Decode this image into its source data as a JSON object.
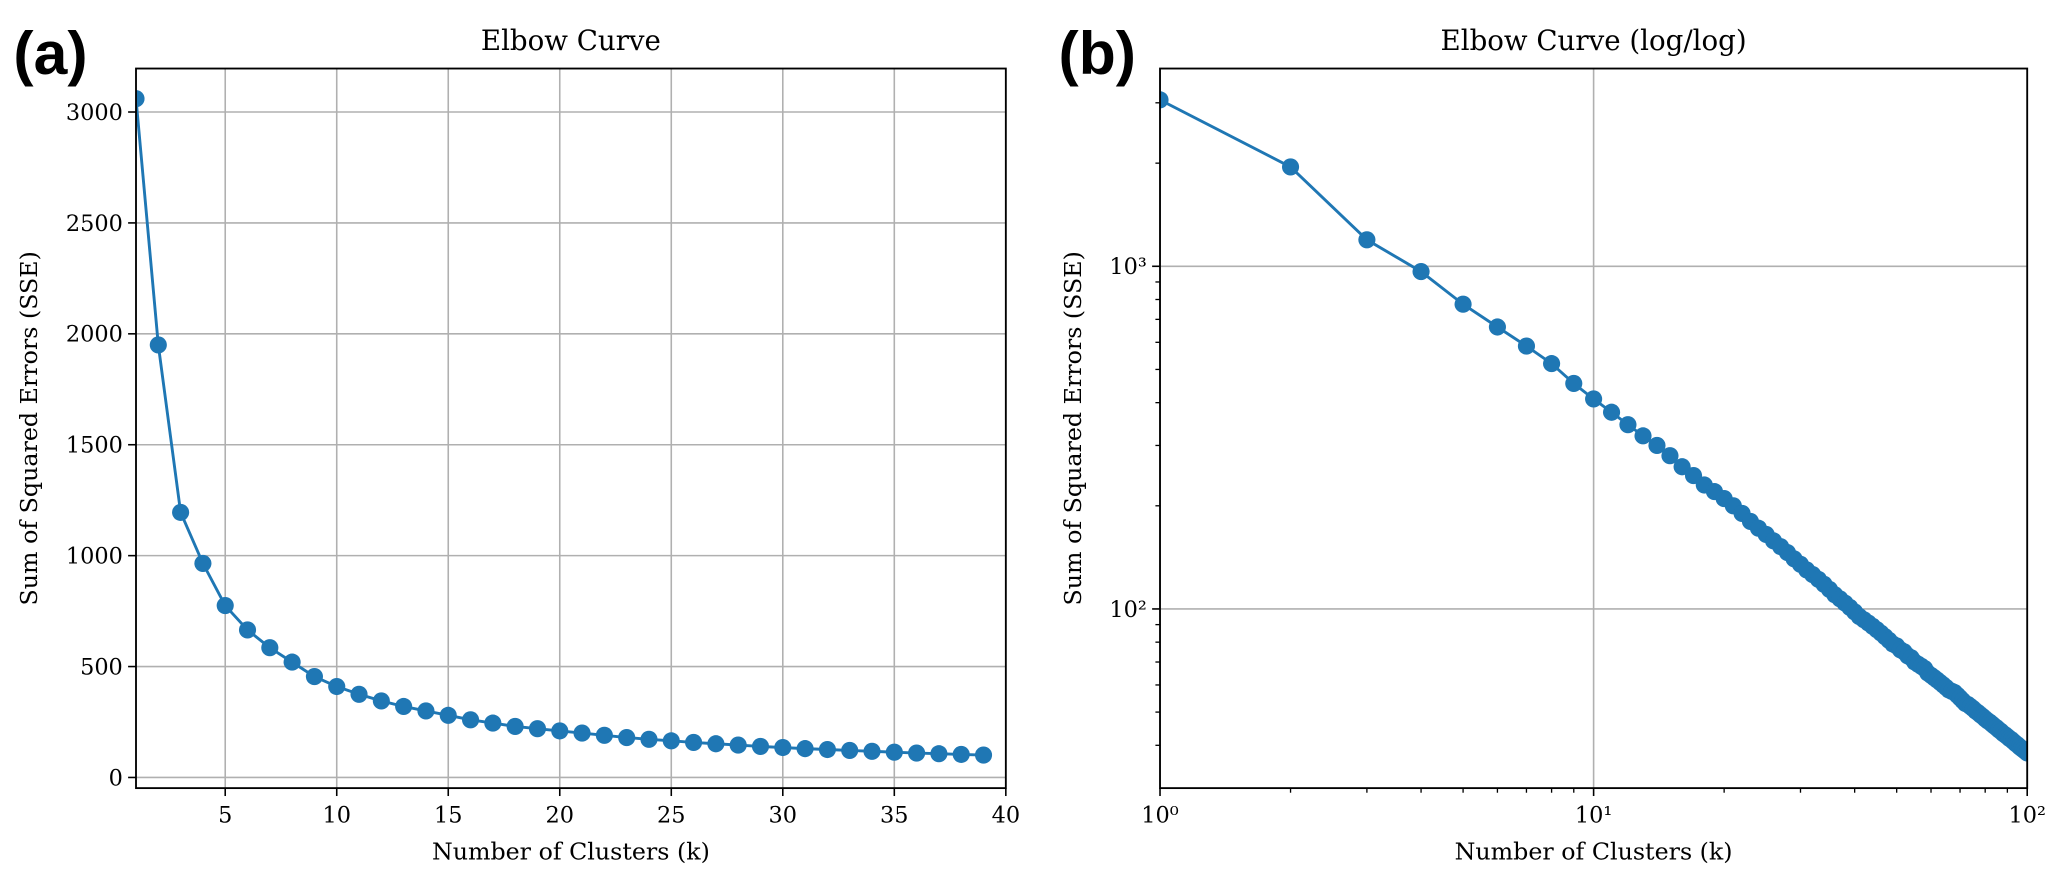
{
  "chart_data": [
    {
      "type": "line",
      "panel_label": "(a)",
      "title": "Elbow Curve",
      "xlabel": "Number of Clusters (k)",
      "ylabel": "Sum of Squared Errors (SSE)",
      "color": "#1f77b4",
      "grid": true,
      "log": false,
      "x": [
        1,
        2,
        3,
        4,
        5,
        6,
        7,
        8,
        9,
        10,
        11,
        12,
        13,
        14,
        15,
        16,
        17,
        18,
        19,
        20,
        21,
        22,
        23,
        24,
        25,
        26,
        27,
        28,
        29,
        30,
        31,
        32,
        33,
        34,
        35,
        36,
        37,
        38,
        39
      ],
      "values": [
        3060,
        1950,
        1195,
        965,
        775,
        665,
        585,
        520,
        455,
        410,
        375,
        345,
        320,
        300,
        280,
        260,
        245,
        230,
        220,
        210,
        200,
        190,
        180,
        172,
        165,
        158,
        152,
        146,
        140,
        135,
        130,
        126,
        122,
        118,
        114,
        110,
        107,
        104,
        101
      ],
      "xlim": [
        1,
        40
      ],
      "ylim": [
        -48,
        3196
      ],
      "xticks": [
        5,
        10,
        15,
        20,
        25,
        30,
        35,
        40
      ],
      "yticks": [
        0,
        500,
        1000,
        1500,
        2000,
        2500,
        3000
      ]
    },
    {
      "type": "line",
      "panel_label": "(b)",
      "title": "Elbow Curve (log/log)",
      "xlabel": "Number of Clusters (k)",
      "ylabel": "Sum of Squared Errors (SSE)",
      "color": "#1f77b4",
      "grid": true,
      "log": true,
      "x": [
        1,
        2,
        3,
        4,
        5,
        6,
        7,
        8,
        9,
        10,
        11,
        12,
        13,
        14,
        15,
        16,
        17,
        18,
        19,
        20,
        21,
        22,
        23,
        24,
        25,
        26,
        27,
        28,
        29,
        30,
        31,
        32,
        33,
        34,
        35,
        36,
        37,
        38,
        39,
        40,
        41,
        42,
        43,
        44,
        45,
        46,
        47,
        48,
        49,
        50,
        51,
        52,
        53,
        54,
        55,
        56,
        57,
        58,
        59,
        60,
        61,
        62,
        63,
        64,
        65,
        66,
        67,
        68,
        69,
        70,
        71,
        72,
        73,
        74,
        75,
        76,
        77,
        78,
        79,
        80,
        81,
        82,
        83,
        84,
        85,
        86,
        87,
        88,
        89,
        90,
        91,
        92,
        93,
        94,
        95,
        96,
        97,
        98,
        99,
        100
      ],
      "values": [
        3060,
        1950,
        1195,
        965,
        775,
        665,
        585,
        520,
        455,
        410,
        375,
        345,
        320,
        300,
        280,
        260,
        245,
        230,
        220,
        210,
        200,
        190,
        180,
        172,
        165,
        158,
        152,
        146,
        140,
        135,
        130,
        126,
        122,
        118,
        114,
        110,
        107,
        104,
        101,
        98,
        95,
        93,
        91,
        89,
        87,
        85,
        83,
        81,
        79,
        78,
        76,
        75,
        73,
        72,
        70,
        69,
        68,
        67,
        65,
        64,
        63,
        62,
        61,
        60,
        59,
        58,
        57.5,
        57,
        56,
        55,
        54,
        53,
        52.6,
        51.9,
        51.2,
        50.4,
        49.8,
        49.1,
        48.5,
        47.8,
        47.2,
        46.7,
        46.1,
        45.5,
        45,
        44.4,
        43.9,
        43.3,
        42.9,
        42.4,
        41.9,
        41.5,
        41,
        40.5,
        40.1,
        39.6,
        39.2,
        38.8,
        38.4,
        38
      ],
      "xlim": [
        1,
        100
      ],
      "ylim": [
        30,
        3777
      ],
      "xticks": [
        {
          "value": 1,
          "label": "10⁰"
        },
        {
          "value": 10,
          "label": "10¹"
        },
        {
          "value": 100,
          "label": "10²"
        }
      ],
      "xminorticks": [
        2,
        3,
        4,
        5,
        6,
        7,
        8,
        9,
        20,
        30,
        40,
        50,
        60,
        70,
        80,
        90
      ],
      "yticks": [
        {
          "value": 100,
          "label": "10²"
        },
        {
          "value": 1000,
          "label": "10³"
        }
      ],
      "yminorticks": [
        40,
        50,
        60,
        70,
        80,
        90,
        200,
        300,
        400,
        500,
        600,
        700,
        800,
        900,
        2000,
        3000
      ]
    }
  ]
}
